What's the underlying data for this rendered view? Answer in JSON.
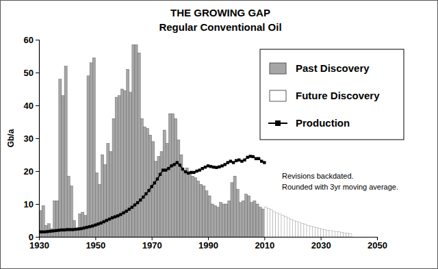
{
  "chart_data": {
    "type": "bar",
    "title": "THE GROWING GAP",
    "subtitle": "Regular Conventional Oil",
    "y_label": "Gb/a",
    "annotations": [
      "Revisions backdated.",
      "Rounded with 3yr moving average."
    ],
    "x": [
      1930,
      1931,
      1932,
      1933,
      1934,
      1935,
      1936,
      1937,
      1938,
      1939,
      1940,
      1941,
      1942,
      1943,
      1944,
      1945,
      1946,
      1947,
      1948,
      1949,
      1950,
      1951,
      1952,
      1953,
      1954,
      1955,
      1956,
      1957,
      1958,
      1959,
      1960,
      1961,
      1962,
      1963,
      1964,
      1965,
      1966,
      1967,
      1968,
      1969,
      1970,
      1971,
      1972,
      1973,
      1974,
      1975,
      1976,
      1977,
      1978,
      1979,
      1980,
      1981,
      1982,
      1983,
      1984,
      1985,
      1986,
      1987,
      1988,
      1989,
      1990,
      1991,
      1992,
      1993,
      1994,
      1995,
      1996,
      1997,
      1998,
      1999,
      2000,
      2001,
      2002,
      2003,
      2004,
      2005,
      2006,
      2007,
      2008,
      2009,
      2010,
      2011,
      2012,
      2013,
      2014,
      2015,
      2016,
      2017,
      2018,
      2019,
      2020,
      2021,
      2022,
      2023,
      2024,
      2025,
      2026,
      2027,
      2028,
      2029,
      2030,
      2031,
      2032,
      2033,
      2034,
      2035,
      2036,
      2037,
      2038,
      2039,
      2040
    ],
    "series": [
      {
        "name": "Past Discovery",
        "type": "bar",
        "color": "#a6a6a6",
        "values": [
          8,
          9.5,
          3.5,
          4,
          2.5,
          11,
          11,
          48,
          43,
          52,
          18.5,
          15.5,
          5,
          2,
          7,
          7.5,
          6.5,
          49,
          53,
          54.5,
          19.5,
          16,
          25,
          22,
          28.5,
          26,
          36,
          42.5,
          43,
          45,
          44.5,
          51,
          44,
          58.5,
          58.5,
          56,
          36,
          33.5,
          33,
          31,
          29,
          23,
          24.5,
          26,
          32.5,
          28.5,
          37.5,
          37.5,
          36,
          29.5,
          25,
          20,
          21,
          19.5,
          18.5,
          18,
          17,
          16,
          15.5,
          14,
          12.5,
          10,
          9.5,
          9,
          10.5,
          10,
          10,
          11,
          16.5,
          18.5,
          14.5,
          10.5,
          11,
          13,
          12.5,
          10.5,
          11,
          10,
          9,
          8.5,
          null,
          null,
          null,
          null,
          null,
          null,
          null,
          null,
          null,
          null,
          null,
          null,
          null,
          null,
          null,
          null,
          null,
          null,
          null,
          null,
          null,
          null,
          null,
          null,
          null,
          null,
          null,
          null,
          null,
          null,
          null
        ]
      },
      {
        "name": "Future Discovery",
        "type": "bar",
        "color": "#ffffff",
        "values": [
          null,
          null,
          null,
          null,
          null,
          null,
          null,
          null,
          null,
          null,
          null,
          null,
          null,
          null,
          null,
          null,
          null,
          null,
          null,
          null,
          null,
          null,
          null,
          null,
          null,
          null,
          null,
          null,
          null,
          null,
          null,
          null,
          null,
          null,
          null,
          null,
          null,
          null,
          null,
          null,
          null,
          null,
          null,
          null,
          null,
          null,
          null,
          null,
          null,
          null,
          null,
          null,
          null,
          null,
          null,
          null,
          null,
          null,
          null,
          null,
          null,
          null,
          null,
          null,
          null,
          null,
          null,
          null,
          null,
          null,
          null,
          null,
          null,
          null,
          null,
          null,
          null,
          null,
          null,
          null,
          9,
          8.6,
          8.2,
          7.7,
          7.3,
          6.9,
          6.5,
          6.1,
          5.7,
          5.4,
          5,
          4.7,
          4.4,
          4.1,
          3.8,
          3.5,
          3.3,
          3,
          2.8,
          2.6,
          2.4,
          2.2,
          2,
          1.9,
          1.7,
          1.6,
          1.5,
          1.3,
          1.2,
          1.1,
          1
        ]
      },
      {
        "name": "Production",
        "type": "line",
        "color": "#000000",
        "marker": "square",
        "line_style": "solid",
        "values": [
          1.5,
          1.5,
          1.5,
          1.6,
          1.7,
          1.8,
          1.9,
          2,
          2.1,
          2.1,
          2.2,
          2.2,
          2.2,
          2.3,
          2.4,
          2.5,
          2.7,
          2.9,
          3.1,
          3.3,
          3.6,
          3.9,
          4.2,
          4.6,
          5,
          5.4,
          5.8,
          6.1,
          6.4,
          6.8,
          7.3,
          7.8,
          8.4,
          9,
          9.7,
          10.4,
          11.2,
          12.1,
          13.1,
          14.1,
          15.3,
          16.4,
          17.6,
          19,
          20.3,
          20.3,
          20.8,
          21.6,
          22,
          22.6,
          21.8,
          20.6,
          19.8,
          19.4,
          19.6,
          19.6,
          20,
          20.3,
          20.8,
          21.2,
          21.6,
          21.4,
          21.2,
          21.1,
          21.3,
          21.6,
          22,
          22.6,
          23,
          22.6,
          23.2,
          23.4,
          23,
          23.4,
          24.2,
          24.5,
          24.4,
          23.8,
          23.8,
          23,
          22.6,
          null,
          null,
          null,
          null,
          null,
          null,
          null,
          null,
          null,
          null,
          null,
          null,
          null,
          null,
          null,
          null,
          null,
          null,
          null,
          null,
          null,
          null,
          null,
          null,
          null,
          null,
          null,
          null,
          null,
          null
        ]
      }
    ],
    "xlim": [
      1930,
      2050
    ],
    "xticks": [
      1930,
      1950,
      1970,
      1990,
      2010,
      2030,
      2050
    ],
    "ylim": [
      0,
      60
    ],
    "yticks": [
      0,
      10,
      20,
      30,
      40,
      50,
      60
    ],
    "grid": false,
    "legend": "top-right"
  }
}
